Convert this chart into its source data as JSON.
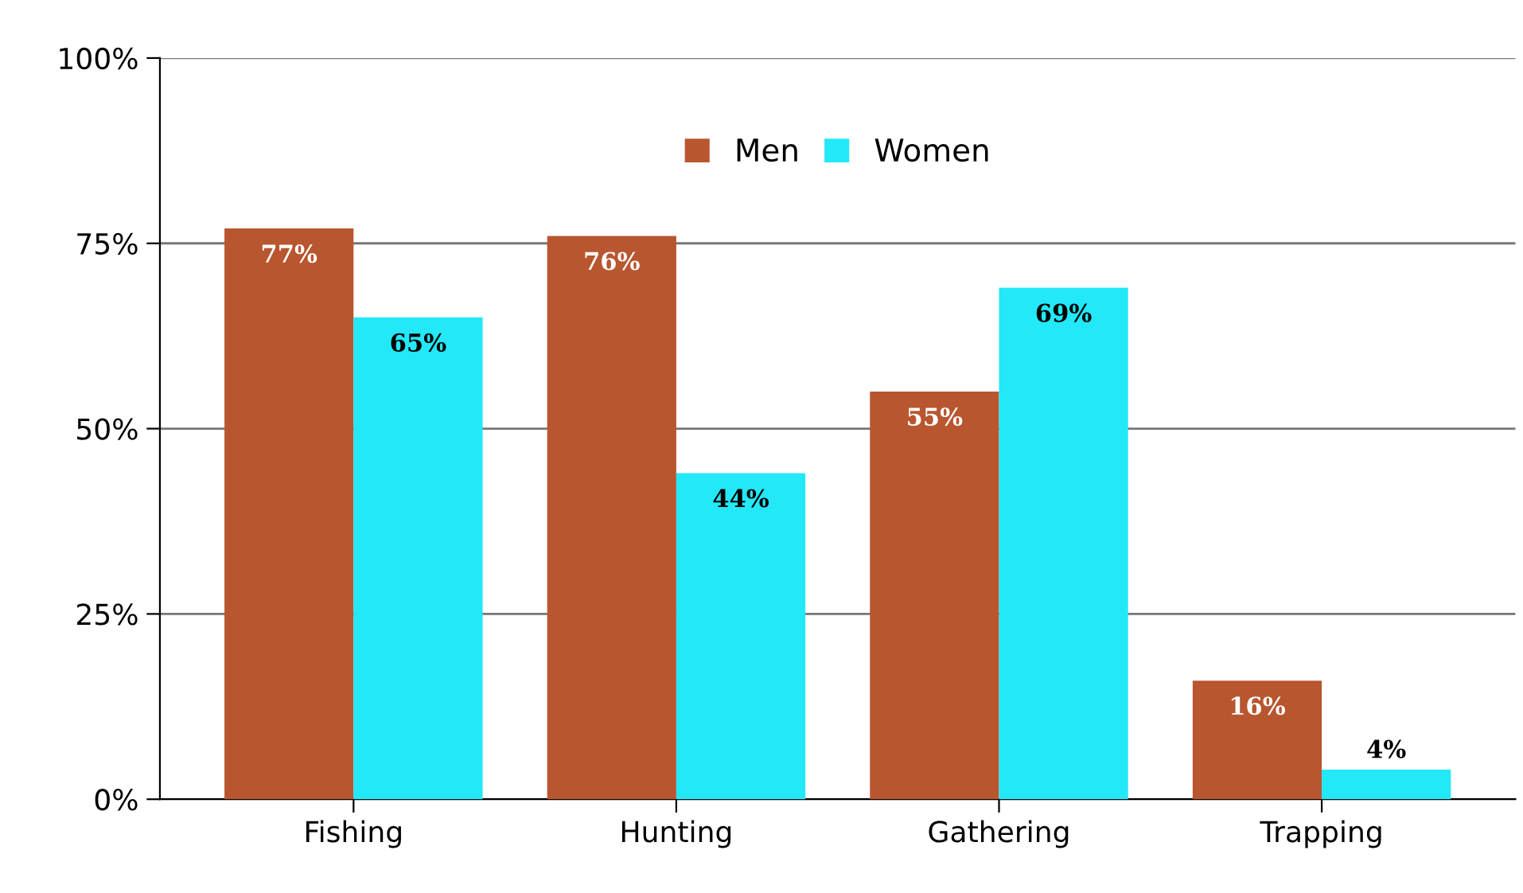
{
  "chart_data": {
    "type": "bar",
    "categories": [
      "Fishing",
      "Hunting",
      "Gathering",
      "Trapping"
    ],
    "series": [
      {
        "name": "Men",
        "color": "#b8562f",
        "values": [
          77,
          76,
          55,
          16
        ],
        "value_labels": [
          "77%",
          "76%",
          "55%",
          "16%"
        ]
      },
      {
        "name": "Women",
        "color": "#22e8f8",
        "values": [
          65,
          44,
          69,
          4
        ],
        "value_labels": [
          "65%",
          "44%",
          "69%",
          "4%"
        ]
      }
    ],
    "ylim": [
      0,
      100
    ],
    "yticks": [
      {
        "value": 0,
        "label": "0%"
      },
      {
        "value": 25,
        "label": "25%"
      },
      {
        "value": 50,
        "label": "50%"
      },
      {
        "value": 75,
        "label": "75%"
      },
      {
        "value": 100,
        "label": "100%"
      }
    ],
    "grid": "y",
    "legend": "top"
  }
}
